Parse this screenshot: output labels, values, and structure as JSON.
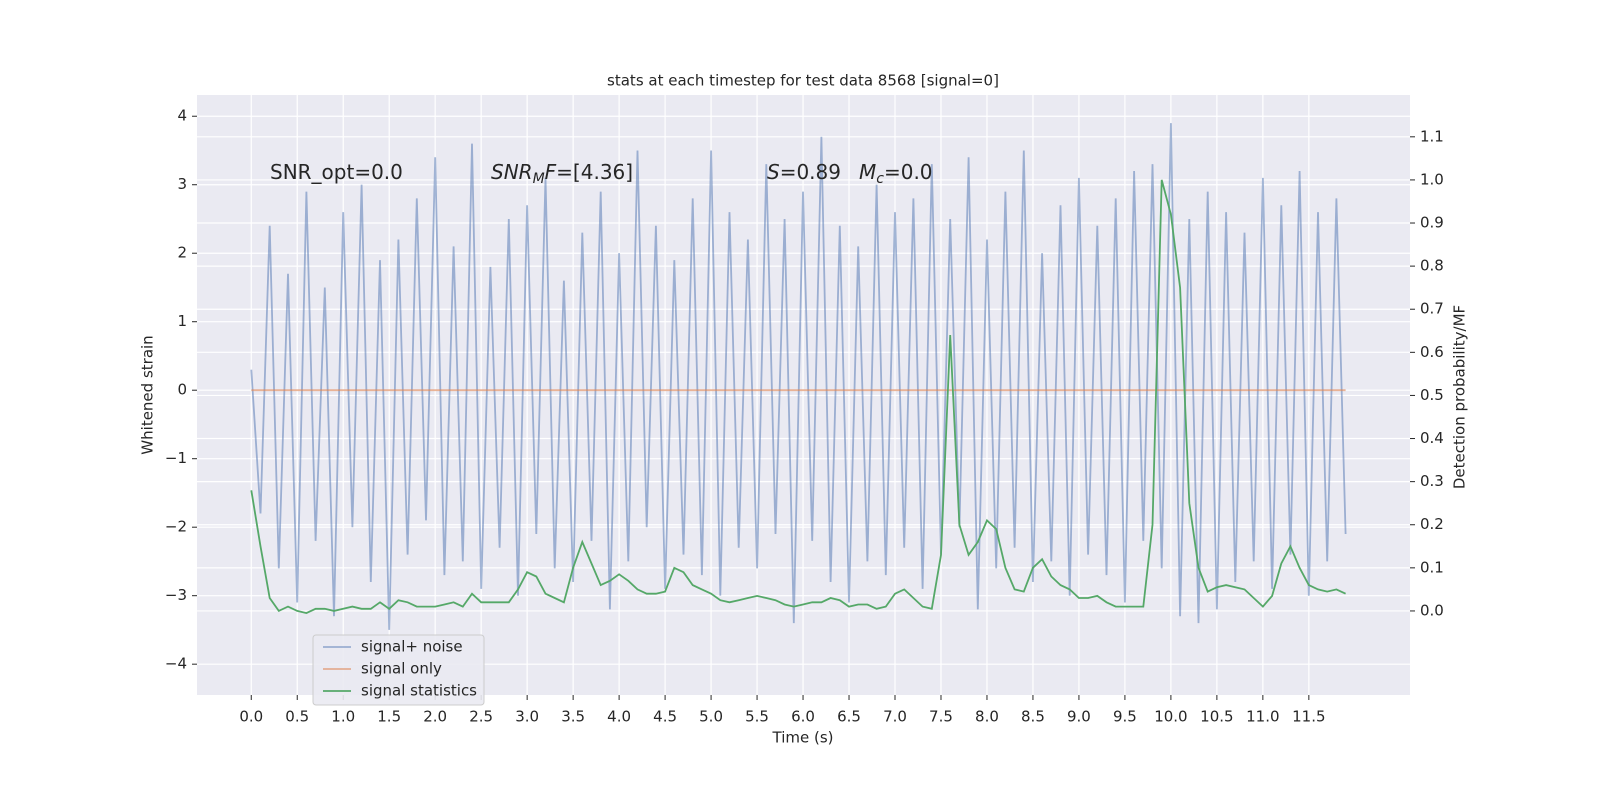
{
  "chart_data": {
    "type": "line",
    "title": "stats at each timestep for test data 8568 [signal=0]",
    "x_label": "Time (s)",
    "y_label": "Whitened strain",
    "y2_label": "Detection probability/MF",
    "xlim": [
      -0.59,
      12.6
    ],
    "ylim": [
      -4.45,
      4.31
    ],
    "y2lim": [
      -0.195,
      1.197
    ],
    "xticks": [
      {
        "value": 0,
        "label": "0.0"
      },
      0.5,
      {
        "value": 1,
        "label": "1.0"
      },
      1.5,
      {
        "value": 2,
        "label": "2.0"
      },
      2.5,
      {
        "value": 3,
        "label": "3.0"
      },
      3.5,
      {
        "value": 4,
        "label": "4.0"
      },
      4.5,
      {
        "value": 5,
        "label": "5.0"
      },
      5.5,
      {
        "value": 6,
        "label": "6.0"
      },
      6.5,
      {
        "value": 7,
        "label": "7.0"
      },
      7.5,
      {
        "value": 8,
        "label": "8.0"
      },
      8.5,
      {
        "value": 9,
        "label": "9.0"
      },
      9.5,
      {
        "value": 10,
        "label": "10.0"
      },
      10.5,
      {
        "value": 11,
        "label": "11.0"
      },
      11.5
    ],
    "yticks": [
      {
        "value": -4,
        "label": "−4"
      },
      {
        "value": -3,
        "label": "−3"
      },
      {
        "value": -2,
        "label": "−2"
      },
      {
        "value": -1,
        "label": "−1"
      },
      0,
      1,
      2,
      3,
      4
    ],
    "y2ticks": [
      {
        "value": 0,
        "label": "0.0"
      },
      0.1,
      0.2,
      0.3,
      0.4,
      0.5,
      0.6,
      0.7,
      0.8,
      0.9,
      {
        "value": 1,
        "label": "1.0"
      },
      1.1
    ],
    "grid": true,
    "legend": "lower left",
    "annotations": [
      [
        {
          "text": "SNR_opt=0.0"
        }
      ],
      [
        {
          "text": "SNR",
          "italic": true
        },
        {
          "text": "M",
          "italic": true,
          "sub": true
        },
        {
          "text": "F",
          "italic": true
        },
        {
          "text": "=[4.36]"
        }
      ],
      [
        {
          "text": "S",
          "italic": true
        },
        {
          "text": "=0.89"
        }
      ],
      [
        {
          "text": "M",
          "italic": true
        },
        {
          "text": "c",
          "italic": true,
          "sub": true
        },
        {
          "text": "=0.0"
        }
      ]
    ],
    "x": [
      0,
      0.1,
      0.2,
      0.3,
      0.4,
      0.5,
      0.6,
      0.7,
      0.8,
      0.9,
      1,
      1.1,
      1.2,
      1.3,
      1.4,
      1.5,
      1.6,
      1.7,
      1.8,
      1.9,
      2,
      2.1,
      2.2,
      2.3,
      2.4,
      2.5,
      2.6,
      2.7,
      2.8,
      2.9,
      3,
      3.1,
      3.2,
      3.3,
      3.4,
      3.5,
      3.6,
      3.7,
      3.8,
      3.9,
      4,
      4.1,
      4.2,
      4.3,
      4.4,
      4.5,
      4.6,
      4.7,
      4.8,
      4.9,
      5,
      5.1,
      5.2,
      5.3,
      5.4,
      5.5,
      5.6,
      5.7,
      5.8,
      5.9,
      6,
      6.1,
      6.2,
      6.3,
      6.4,
      6.5,
      6.6,
      6.7,
      6.8,
      6.9,
      7,
      7.1,
      7.2,
      7.3,
      7.4,
      7.5,
      7.6,
      7.7,
      7.8,
      7.9,
      8,
      8.1,
      8.2,
      8.3,
      8.4,
      8.5,
      8.6,
      8.7,
      8.8,
      8.9,
      9,
      9.1,
      9.2,
      9.3,
      9.4,
      9.5,
      9.6,
      9.7,
      9.8,
      9.9,
      10,
      10.1,
      10.2,
      10.3,
      10.4,
      10.5,
      10.6,
      10.7,
      10.8,
      10.9,
      11,
      11.1,
      11.2,
      11.3,
      11.4,
      11.5,
      11.6,
      11.7,
      11.8,
      11.9
    ],
    "series": [
      {
        "name": "signal+ noise",
        "color": "#4c72b0",
        "opacity": 0.5,
        "values": [
          0.3,
          -1.8,
          2.4,
          -2.6,
          1.7,
          -3.1,
          2.9,
          -2.2,
          1.5,
          -3.3,
          2.6,
          -2.0,
          3.0,
          -2.8,
          1.9,
          -3.5,
          2.2,
          -2.4,
          2.8,
          -1.9,
          3.4,
          -2.7,
          2.1,
          -2.5,
          3.6,
          -2.9,
          1.8,
          -2.3,
          2.5,
          -3.0,
          2.7,
          -2.1,
          3.1,
          -2.6,
          1.6,
          -2.8,
          2.3,
          -2.2,
          2.9,
          -3.2,
          2.0,
          -2.5,
          3.5,
          -2.0,
          2.4,
          -2.9,
          1.9,
          -2.4,
          2.8,
          -2.7,
          3.5,
          -3.0,
          2.6,
          -2.3,
          2.2,
          -2.6,
          3.3,
          -2.1,
          2.5,
          -3.4,
          2.9,
          -2.2,
          3.7,
          -2.8,
          2.4,
          -3.1,
          2.1,
          -2.5,
          3.0,
          -2.7,
          2.6,
          -2.3,
          2.8,
          -2.9,
          3.3,
          -2.4,
          2.5,
          -2.0,
          3.4,
          -3.2,
          2.2,
          -2.6,
          2.9,
          -2.3,
          3.5,
          -2.8,
          2.0,
          -2.5,
          2.7,
          -3.0,
          3.1,
          -2.4,
          2.4,
          -2.7,
          2.8,
          -3.1,
          3.2,
          -2.2,
          3.3,
          -2.6,
          3.9,
          -3.3,
          2.5,
          -3.4,
          2.9,
          -3.2,
          2.6,
          -2.8,
          2.3,
          -2.5,
          3.1,
          -2.9,
          2.7,
          -2.4,
          3.2,
          -3.0,
          2.6,
          -2.5,
          2.8,
          -2.1
        ]
      },
      {
        "name": "signal only",
        "color": "#dd8452",
        "opacity": 0.6,
        "values": [
          0,
          0,
          0,
          0,
          0,
          0,
          0,
          0,
          0,
          0,
          0,
          0,
          0,
          0,
          0,
          0,
          0,
          0,
          0,
          0,
          0,
          0,
          0,
          0,
          0,
          0,
          0,
          0,
          0,
          0,
          0,
          0,
          0,
          0,
          0,
          0,
          0,
          0,
          0,
          0,
          0,
          0,
          0,
          0,
          0,
          0,
          0,
          0,
          0,
          0,
          0,
          0,
          0,
          0,
          0,
          0,
          0,
          0,
          0,
          0,
          0,
          0,
          0,
          0,
          0,
          0,
          0,
          0,
          0,
          0,
          0,
          0,
          0,
          0,
          0,
          0,
          0,
          0,
          0,
          0,
          0,
          0,
          0,
          0,
          0,
          0,
          0,
          0,
          0,
          0,
          0,
          0,
          0,
          0,
          0,
          0,
          0,
          0,
          0,
          0,
          0,
          0,
          0,
          0,
          0,
          0,
          0,
          0,
          0,
          0,
          0,
          0,
          0,
          0,
          0,
          0,
          0,
          0,
          0,
          0
        ]
      },
      {
        "name": "signal statistics",
        "color": "#55a868",
        "opacity": 1,
        "axis": "y2",
        "values": [
          0.28,
          0.15,
          0.03,
          0.0,
          0.01,
          0.0,
          -0.005,
          0.005,
          0.005,
          0.0,
          0.005,
          0.01,
          0.005,
          0.005,
          0.02,
          0.005,
          0.025,
          0.02,
          0.01,
          0.01,
          0.01,
          0.015,
          0.02,
          0.01,
          0.04,
          0.02,
          0.02,
          0.02,
          0.02,
          0.05,
          0.09,
          0.08,
          0.04,
          0.03,
          0.02,
          0.1,
          0.16,
          0.11,
          0.06,
          0.07,
          0.085,
          0.07,
          0.05,
          0.04,
          0.04,
          0.045,
          0.1,
          0.09,
          0.06,
          0.05,
          0.04,
          0.025,
          0.02,
          0.025,
          0.03,
          0.035,
          0.03,
          0.025,
          0.015,
          0.01,
          0.015,
          0.02,
          0.02,
          0.03,
          0.025,
          0.01,
          0.015,
          0.015,
          0.005,
          0.01,
          0.04,
          0.05,
          0.03,
          0.01,
          0.005,
          0.13,
          0.64,
          0.2,
          0.13,
          0.16,
          0.21,
          0.19,
          0.1,
          0.05,
          0.045,
          0.1,
          0.12,
          0.08,
          0.06,
          0.05,
          0.03,
          0.03,
          0.035,
          0.02,
          0.01,
          0.01,
          0.01,
          0.01,
          0.2,
          1.0,
          0.92,
          0.75,
          0.25,
          0.1,
          0.045,
          0.055,
          0.06,
          0.055,
          0.05,
          0.03,
          0.01,
          0.035,
          0.11,
          0.15,
          0.1,
          0.06,
          0.05,
          0.045,
          0.05,
          0.04
        ]
      }
    ]
  }
}
